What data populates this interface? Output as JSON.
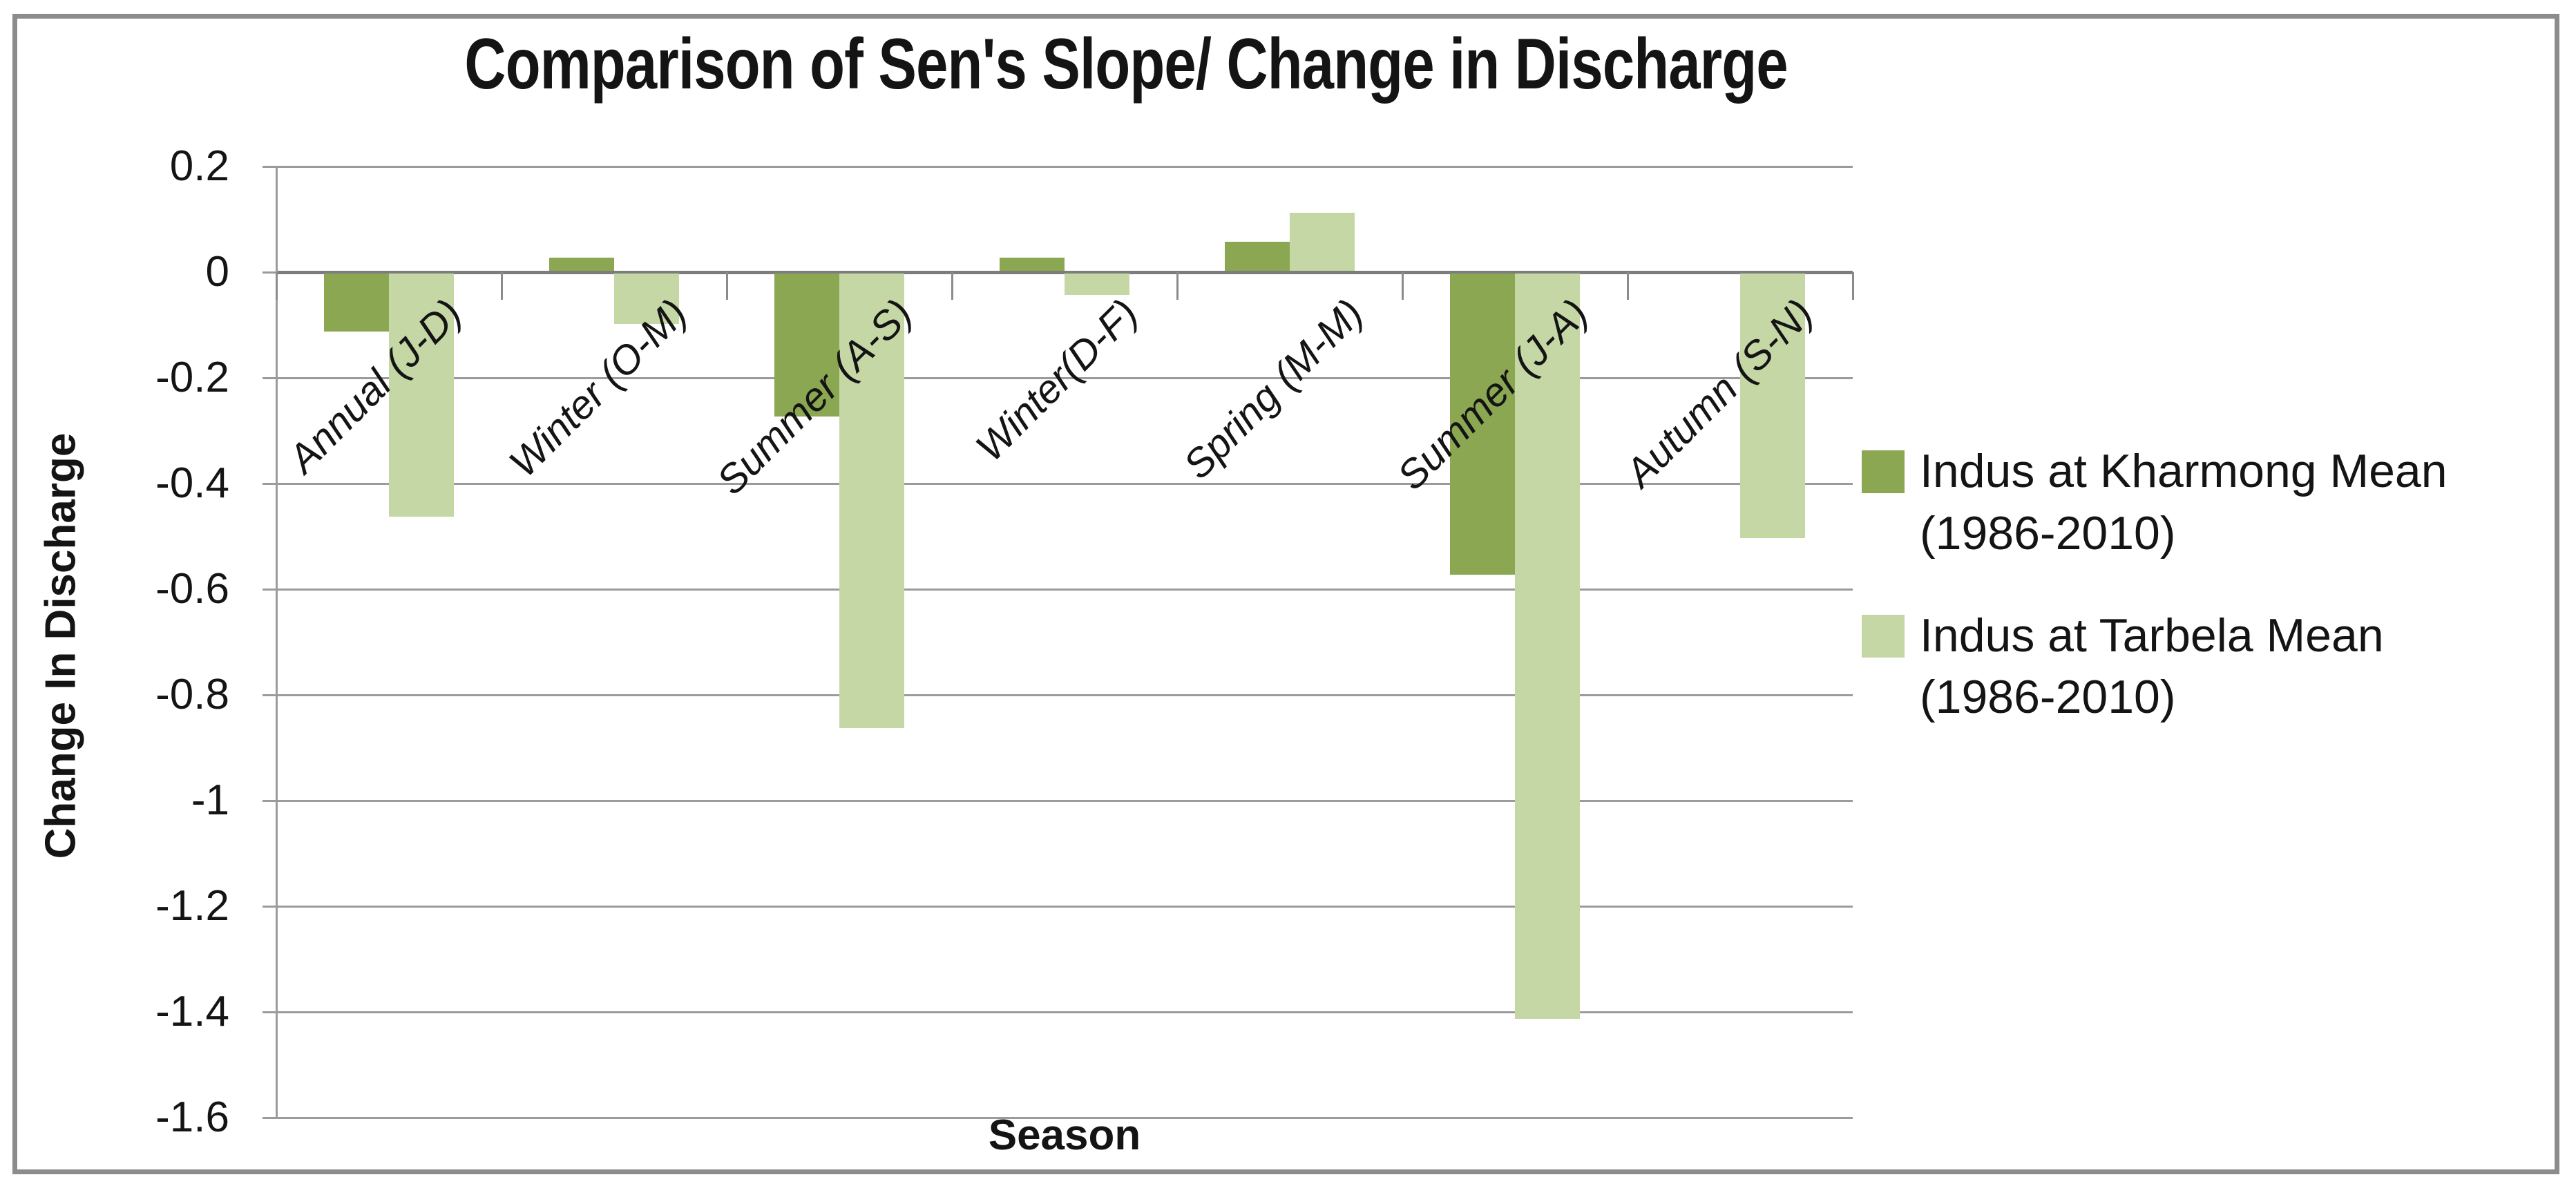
{
  "figure": {
    "border_color": "#8c8c8c",
    "background": "#ffffff"
  },
  "chart_data": {
    "type": "bar",
    "title": "Comparison of Sen's Slope/ Change in Discharge",
    "xlabel": "Season",
    "ylabel": "Change In Discharge",
    "ylim": [
      -1.6,
      0.2
    ],
    "ytick_step": 0.2,
    "ytick_labels": [
      "0.2",
      "0",
      "-0.2",
      "-0.4",
      "-0.6",
      "-0.8",
      "-1",
      "-1.2",
      "-1.4",
      "-1.6"
    ],
    "grid": true,
    "legend_position": "right",
    "categories": [
      "Annual (J-D)",
      "Winter (O-M)",
      "Summer (A-S)",
      "Winter(D-F)",
      "Spring (M-M)",
      "Summer (J-A)",
      "Autumn (S-N)"
    ],
    "series": [
      {
        "name": "Indus at Kharmong Mean (1986-2010)",
        "legend_lines": [
          "Indus at Kharmong Mean",
          "(1986-2010)"
        ],
        "color": "#8ba752",
        "values": [
          -0.11,
          0.025,
          -0.27,
          0.025,
          0.055,
          -0.57,
          0
        ]
      },
      {
        "name": "Indus at Tarbela Mean (1986-2010)",
        "legend_lines": [
          "Indus at Tarbela Mean",
          "(1986-2010)"
        ],
        "color": "#c6d7a6",
        "values": [
          -0.46,
          -0.095,
          -0.86,
          -0.04,
          0.11,
          -1.41,
          -0.5
        ]
      }
    ],
    "axis_colors": {
      "gridline": "#9b9b9b",
      "zero_axis": "#7d7d7d",
      "tick": "#8b8b8b"
    }
  }
}
